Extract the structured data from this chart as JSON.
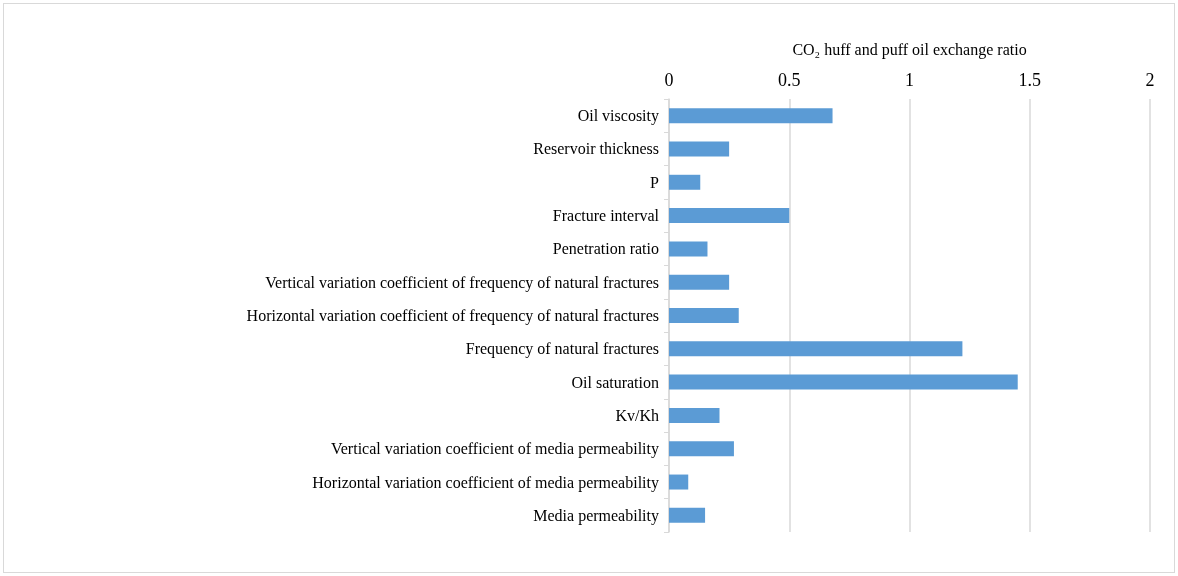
{
  "chart_data": {
    "type": "bar",
    "orientation": "horizontal",
    "xlabel": "CO₂ huff and puff oil exchange ratio",
    "categories": [
      "Oil viscosity",
      "Reservoir thickness",
      "P",
      "Fracture interval",
      "Penetration ratio",
      "Vertical variation coefficient of frequency of natural fractures",
      "Horizontal variation coefficient of frequency of natural fractures",
      "Frequency of natural fractures",
      "Oil saturation",
      "Kv/Kh",
      "Vertical variation coefficient of media permeability",
      "Horizontal variation coefficient of media permeability",
      "Media permeability"
    ],
    "values": [
      0.68,
      0.25,
      0.13,
      0.5,
      0.16,
      0.25,
      0.29,
      1.22,
      1.45,
      0.21,
      0.27,
      0.08,
      0.15
    ],
    "color": "#5b9bd5",
    "xlim": [
      0,
      2
    ],
    "xticks": [
      0,
      0.5,
      1,
      1.5,
      2
    ],
    "grid": "x"
  }
}
